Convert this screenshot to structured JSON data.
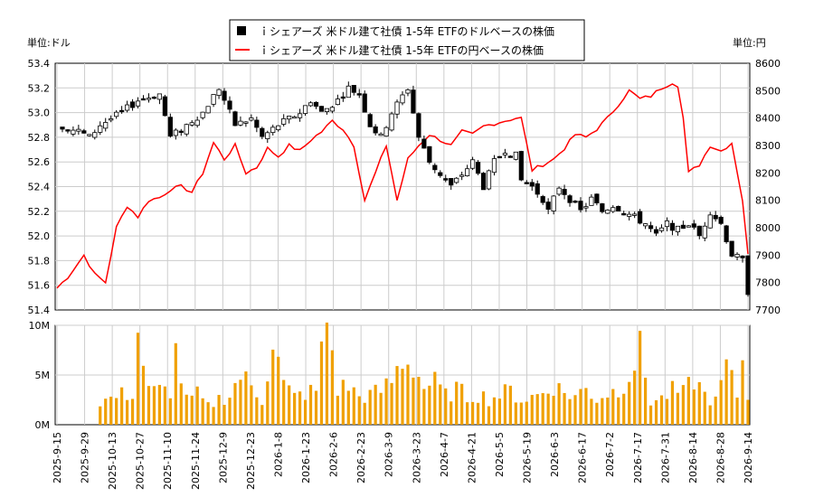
{
  "chart_data": {
    "type": "candlestick+line+bar",
    "legend": {
      "entries": [
        "ｉシェアーズ 米ドル建て社債 1-5年 ETFのドルベースの株価",
        "ｉシェアーズ 米ドル建て社債 1-5年 ETFの円ベースの株価"
      ],
      "placement": "top-center"
    },
    "y_left_label": "単位:ドル",
    "y_right_label": "単位:円",
    "y_left_ticks": [
      "53.4",
      "53.2",
      "53.0",
      "52.8",
      "52.6",
      "52.4",
      "52.2",
      "52.0",
      "51.8",
      "51.6",
      "51.4"
    ],
    "y_left_range": [
      51.4,
      53.4
    ],
    "y_right_ticks": [
      "8600",
      "8500",
      "8400",
      "8300",
      "8200",
      "8100",
      "8000",
      "7900",
      "7800",
      "7700"
    ],
    "y_right_range": [
      7700,
      8600
    ],
    "volume_ticks": [
      "10M",
      "5M",
      "0M"
    ],
    "volume_range": [
      0,
      10
    ],
    "x_ticks": [
      "2025-9-15",
      "2025-9-29",
      "2025-10-13",
      "2025-10-27",
      "2025-11-10",
      "2025-11-24",
      "2025-12-9",
      "2025-12-23",
      "2026-1-8",
      "2026-1-23",
      "2026-2-6",
      "2026-2-23",
      "2026-3-9",
      "2026-3-23",
      "2026-4-7",
      "2026-4-21",
      "2026-5-5",
      "2026-5-19",
      "2026-6-3",
      "2026-6-17",
      "2026-7-2",
      "2026-7-17",
      "2026-7-31",
      "2026-8-14",
      "2026-8-28",
      "2026-9-14"
    ],
    "grid": true,
    "colors": {
      "candle": "#000000",
      "yen_line": "#ff0000",
      "volume": "#f0a000",
      "grid": "#cccccc"
    },
    "usd_price_anchors": [
      [
        0,
        52.9
      ],
      [
        4,
        52.85
      ],
      [
        6,
        52.8
      ],
      [
        8,
        52.9
      ],
      [
        12,
        53.0
      ],
      [
        15,
        53.1
      ],
      [
        19,
        53.15
      ],
      [
        21,
        52.8
      ],
      [
        24,
        52.9
      ],
      [
        27,
        53.0
      ],
      [
        30,
        53.2
      ],
      [
        33,
        52.9
      ],
      [
        36,
        52.95
      ],
      [
        38,
        52.8
      ],
      [
        41,
        52.9
      ],
      [
        45,
        53.0
      ],
      [
        47,
        53.1
      ],
      [
        49,
        53.0
      ],
      [
        52,
        53.1
      ],
      [
        54,
        53.2
      ],
      [
        56,
        53.15
      ],
      [
        58,
        52.9
      ],
      [
        60,
        52.8
      ],
      [
        62,
        53.0
      ],
      [
        65,
        53.2
      ],
      [
        67,
        52.8
      ],
      [
        69,
        52.6
      ],
      [
        71,
        52.5
      ],
      [
        73,
        52.4
      ],
      [
        75,
        52.5
      ],
      [
        77,
        52.6
      ],
      [
        79,
        52.4
      ],
      [
        81,
        52.6
      ],
      [
        83,
        52.7
      ],
      [
        85,
        52.65
      ],
      [
        86,
        52.45
      ],
      [
        88,
        52.4
      ],
      [
        90,
        52.3
      ],
      [
        91,
        52.2
      ],
      [
        93,
        52.4
      ],
      [
        95,
        52.3
      ],
      [
        97,
        52.2
      ],
      [
        99,
        52.3
      ],
      [
        101,
        52.2
      ],
      [
        103,
        52.25
      ],
      [
        105,
        52.2
      ],
      [
        107,
        52.15
      ],
      [
        109,
        52.1
      ],
      [
        111,
        52.0
      ],
      [
        113,
        52.1
      ],
      [
        115,
        52.05
      ],
      [
        117,
        52.1
      ],
      [
        119,
        52.0
      ],
      [
        121,
        52.2
      ],
      [
        123,
        52.1
      ],
      [
        125,
        51.85
      ],
      [
        127,
        51.8
      ],
      [
        128,
        51.55
      ]
    ],
    "jpy_price_anchors": [
      [
        0,
        7780
      ],
      [
        2,
        7820
      ],
      [
        5,
        7900
      ],
      [
        7,
        7830
      ],
      [
        9,
        7800
      ],
      [
        11,
        8000
      ],
      [
        13,
        8080
      ],
      [
        15,
        8040
      ],
      [
        17,
        8100
      ],
      [
        19,
        8110
      ],
      [
        21,
        8140
      ],
      [
        23,
        8150
      ],
      [
        25,
        8130
      ],
      [
        27,
        8200
      ],
      [
        29,
        8310
      ],
      [
        31,
        8250
      ],
      [
        33,
        8300
      ],
      [
        35,
        8200
      ],
      [
        37,
        8220
      ],
      [
        39,
        8290
      ],
      [
        41,
        8260
      ],
      [
        43,
        8300
      ],
      [
        45,
        8280
      ],
      [
        47,
        8320
      ],
      [
        49,
        8350
      ],
      [
        51,
        8390
      ],
      [
        53,
        8360
      ],
      [
        55,
        8300
      ],
      [
        57,
        8100
      ],
      [
        59,
        8200
      ],
      [
        61,
        8300
      ],
      [
        63,
        8100
      ],
      [
        65,
        8250
      ],
      [
        67,
        8300
      ],
      [
        69,
        8340
      ],
      [
        71,
        8320
      ],
      [
        73,
        8300
      ],
      [
        75,
        8350
      ],
      [
        77,
        8340
      ],
      [
        79,
        8370
      ],
      [
        81,
        8380
      ],
      [
        83,
        8390
      ],
      [
        85,
        8400
      ],
      [
        86,
        8400
      ],
      [
        88,
        8210
      ],
      [
        90,
        8230
      ],
      [
        92,
        8250
      ],
      [
        94,
        8290
      ],
      [
        96,
        8340
      ],
      [
        98,
        8330
      ],
      [
        100,
        8360
      ],
      [
        102,
        8400
      ],
      [
        104,
        8450
      ],
      [
        106,
        8500
      ],
      [
        108,
        8470
      ],
      [
        110,
        8480
      ],
      [
        112,
        8510
      ],
      [
        114,
        8530
      ],
      [
        115,
        8520
      ],
      [
        116,
        8400
      ],
      [
        117,
        8200
      ],
      [
        119,
        8230
      ],
      [
        121,
        8300
      ],
      [
        123,
        8280
      ],
      [
        125,
        8310
      ],
      [
        127,
        8100
      ],
      [
        128,
        7900
      ]
    ],
    "volume_anchors_M": [
      [
        0,
        0
      ],
      [
        7,
        0
      ],
      [
        8,
        2.4
      ],
      [
        10,
        2.6
      ],
      [
        12,
        3.0
      ],
      [
        14,
        3.2
      ],
      [
        15,
        9.2
      ],
      [
        17,
        3.3
      ],
      [
        19,
        3.4
      ],
      [
        21,
        3.5
      ],
      [
        22,
        7.2
      ],
      [
        24,
        2.4
      ],
      [
        26,
        3.0
      ],
      [
        28,
        1.8
      ],
      [
        30,
        2.6
      ],
      [
        32,
        3.0
      ],
      [
        34,
        5.0
      ],
      [
        36,
        3.8
      ],
      [
        38,
        2.5
      ],
      [
        40,
        8.6
      ],
      [
        42,
        4.0
      ],
      [
        44,
        2.8
      ],
      [
        46,
        3.2
      ],
      [
        48,
        3.4
      ],
      [
        50,
        10.8
      ],
      [
        52,
        3.6
      ],
      [
        54,
        3.9
      ],
      [
        56,
        2.8
      ],
      [
        58,
        3.0
      ],
      [
        60,
        3.4
      ],
      [
        62,
        4.4
      ],
      [
        64,
        6.6
      ],
      [
        66,
        5.9
      ],
      [
        68,
        3.8
      ],
      [
        70,
        4.2
      ],
      [
        72,
        2.9
      ],
      [
        74,
        3.6
      ],
      [
        76,
        2.8
      ],
      [
        78,
        3.1
      ],
      [
        80,
        2.6
      ],
      [
        82,
        3.0
      ],
      [
        84,
        3.4
      ],
      [
        86,
        2.5
      ],
      [
        88,
        2.8
      ],
      [
        90,
        3.2
      ],
      [
        92,
        4.0
      ],
      [
        94,
        3.2
      ],
      [
        96,
        2.9
      ],
      [
        98,
        3.6
      ],
      [
        100,
        2.6
      ],
      [
        102,
        3.2
      ],
      [
        104,
        3.5
      ],
      [
        106,
        5.2
      ],
      [
        108,
        7.4
      ],
      [
        110,
        2.4
      ],
      [
        112,
        2.6
      ],
      [
        114,
        3.4
      ],
      [
        116,
        3.1
      ],
      [
        118,
        4.6
      ],
      [
        120,
        3.0
      ],
      [
        122,
        2.3
      ],
      [
        124,
        5.8
      ],
      [
        126,
        3.0
      ],
      [
        127,
        6.4
      ],
      [
        128,
        3.0
      ]
    ]
  }
}
